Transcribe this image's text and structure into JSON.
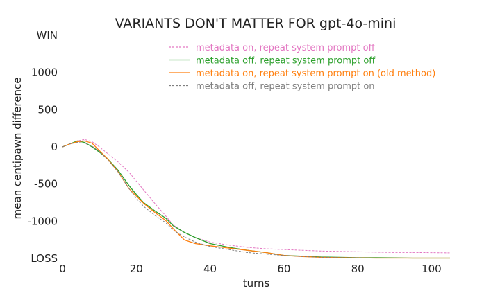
{
  "chart_data": {
    "type": "line",
    "title": "VARIANTS DON'T MATTER FOR gpt-4o-mini",
    "xlabel": "turns",
    "ylabel": "mean centipawn difference",
    "xlim": [
      0,
      105
    ],
    "ylim": [
      -1500,
      1500
    ],
    "x_ticks": [
      0,
      20,
      40,
      60,
      80,
      100
    ],
    "y_ticks": [
      {
        "value": 1500,
        "label": "WIN"
      },
      {
        "value": 1000,
        "label": "1000"
      },
      {
        "value": 500,
        "label": "500"
      },
      {
        "value": 0,
        "label": "0"
      },
      {
        "value": -500,
        "label": "-500"
      },
      {
        "value": -1000,
        "label": "-1000"
      },
      {
        "value": -1500,
        "label": "LOSS"
      }
    ],
    "grid": false,
    "legend_position": "top-right",
    "series": [
      {
        "name": "metadata on, repeat system prompt off",
        "color": "#e377c2",
        "dash": "dashed",
        "x": [
          0,
          2,
          4,
          6,
          8,
          10,
          12,
          15,
          18,
          20,
          22,
          25,
          28,
          30,
          33,
          36,
          40,
          45,
          50,
          55,
          60,
          65,
          70,
          75,
          80,
          85,
          90,
          95,
          100,
          105
        ],
        "y": [
          0,
          40,
          80,
          100,
          70,
          0,
          -80,
          -200,
          -340,
          -460,
          -580,
          -760,
          -930,
          -1050,
          -1150,
          -1220,
          -1280,
          -1320,
          -1350,
          -1370,
          -1380,
          -1390,
          -1400,
          -1405,
          -1410,
          -1415,
          -1420,
          -1420,
          -1422,
          -1425
        ]
      },
      {
        "name": "metadata off, repeat system prompt off",
        "color": "#2ca02c",
        "dash": "solid",
        "x": [
          0,
          2,
          4,
          6,
          8,
          10,
          12,
          15,
          18,
          20,
          22,
          25,
          28,
          30,
          33,
          36,
          40,
          45,
          50,
          55,
          60,
          65,
          70,
          75,
          80,
          85,
          90,
          95,
          100,
          105
        ],
        "y": [
          0,
          40,
          80,
          60,
          0,
          -70,
          -150,
          -310,
          -520,
          -640,
          -750,
          -860,
          -960,
          -1060,
          -1150,
          -1220,
          -1300,
          -1350,
          -1390,
          -1420,
          -1460,
          -1470,
          -1480,
          -1485,
          -1490,
          -1490,
          -1492,
          -1495,
          -1495,
          -1495
        ]
      },
      {
        "name": "metadata on, repeat system prompt on (old method)",
        "color": "#ff7f0e",
        "dash": "solid",
        "x": [
          0,
          2,
          4,
          6,
          8,
          10,
          12,
          15,
          18,
          20,
          22,
          25,
          28,
          30,
          33,
          36,
          40,
          45,
          50,
          55,
          60,
          65,
          70,
          75,
          80,
          85,
          90,
          95,
          100,
          105
        ],
        "y": [
          0,
          40,
          70,
          80,
          50,
          -50,
          -150,
          -330,
          -560,
          -660,
          -760,
          -880,
          -990,
          -1100,
          -1250,
          -1300,
          -1330,
          -1360,
          -1390,
          -1420,
          -1460,
          -1475,
          -1485,
          -1490,
          -1492,
          -1495,
          -1495,
          -1495,
          -1495,
          -1495
        ]
      },
      {
        "name": "metadata off, repeat system prompt on",
        "color": "#7f7f7f",
        "dash": "dashed",
        "x": [
          0,
          2,
          4,
          6,
          8,
          10,
          12,
          15,
          18,
          20,
          22,
          25,
          28,
          30,
          33,
          36,
          40,
          45,
          50,
          55,
          60,
          65,
          70,
          75,
          80,
          85,
          90,
          95,
          100,
          105
        ],
        "y": [
          0,
          40,
          60,
          50,
          10,
          -60,
          -160,
          -330,
          -560,
          -690,
          -800,
          -920,
          -1020,
          -1120,
          -1210,
          -1280,
          -1340,
          -1380,
          -1420,
          -1440,
          -1460,
          -1475,
          -1485,
          -1490,
          -1492,
          -1495,
          -1495,
          -1495,
          -1495,
          -1495
        ]
      }
    ]
  }
}
